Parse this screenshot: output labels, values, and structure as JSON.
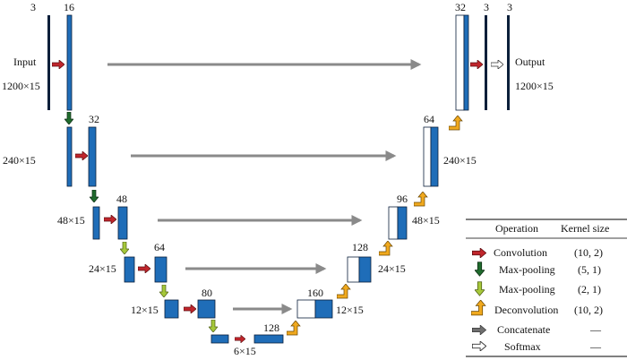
{
  "colors": {
    "block": "#1f6db8",
    "edge": "#0b1f3a",
    "convolution": "#c0262c",
    "maxpool_5": "#1f6b2d",
    "maxpool_2": "#a6c83a",
    "deconvolution": "#f0a91e",
    "concatenate": "#8a8a8a",
    "softmax": "#ffffff"
  },
  "channels": {
    "in": "3",
    "l1": "16",
    "l2": "32",
    "l3": "48",
    "l4": "64",
    "l5": "80",
    "bottom": "128",
    "up4": "160",
    "up3": "128",
    "up2": "96",
    "up1": "64",
    "up0": "32",
    "final": "3",
    "out": "3"
  },
  "sizes": {
    "l1": "1200×15",
    "l2": "240×15",
    "l3": "48×15",
    "l4": "24×15",
    "l5": "12×15",
    "bottom": "6×15",
    "r4": "12×15",
    "r3": "24×15",
    "r2": "48×15",
    "r1": "240×15",
    "r0": "1200×15"
  },
  "labels": {
    "input": "Input",
    "output": "Output"
  },
  "legend": {
    "col_operation": "Operation",
    "col_kernel": "Kernel size",
    "rows": [
      {
        "icon": "red-arrow-icon",
        "operation": "Convolution",
        "kernel": "(10, 2)"
      },
      {
        "icon": "dark-green-down-arrow-icon",
        "operation": "Max-pooling",
        "kernel": "(5, 1)"
      },
      {
        "icon": "light-green-down-arrow-icon",
        "operation": "Max-pooling",
        "kernel": "(2, 1)"
      },
      {
        "icon": "orange-bent-arrow-icon",
        "operation": "Deconvolution",
        "kernel": "(10, 2)"
      },
      {
        "icon": "gray-arrow-icon",
        "operation": "Concatenate",
        "kernel": "—"
      },
      {
        "icon": "white-arrow-icon",
        "operation": "Softmax",
        "kernel": "—"
      }
    ]
  }
}
